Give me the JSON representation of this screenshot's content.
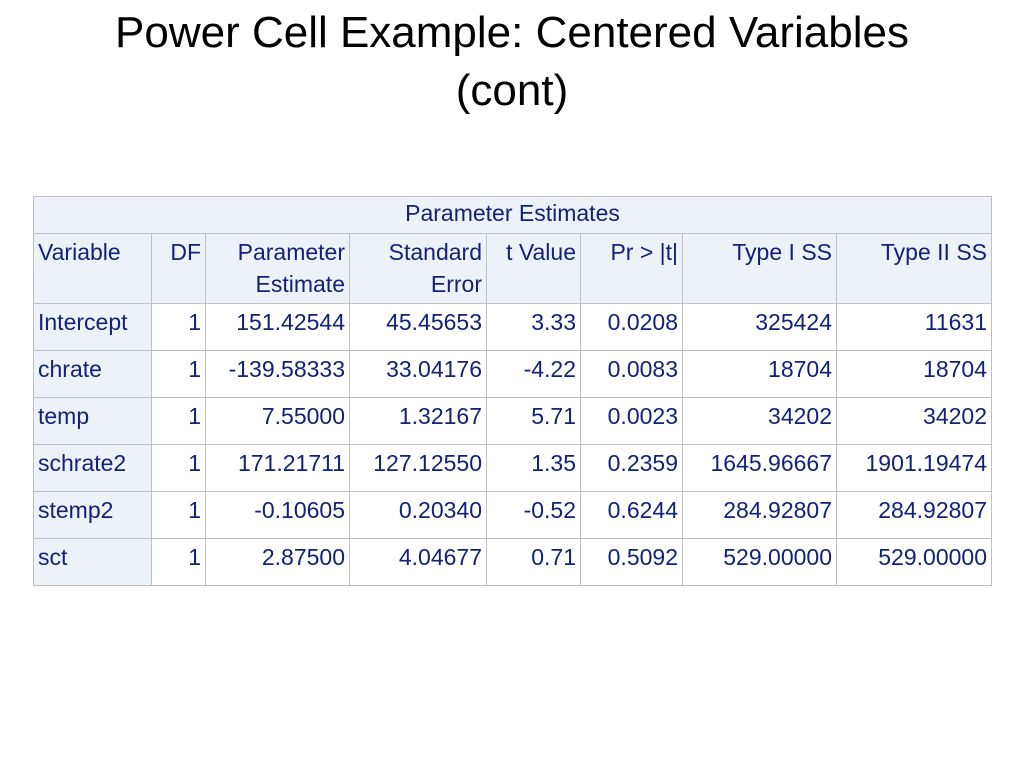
{
  "slide": {
    "title_line1": "Power Cell Example: Centered Variables",
    "title_line2": "(cont)"
  },
  "table": {
    "caption": "Parameter Estimates",
    "headers": [
      {
        "line1": "Variable",
        "line2": ""
      },
      {
        "line1": "DF",
        "line2": ""
      },
      {
        "line1": "Parameter",
        "line2": "Estimate"
      },
      {
        "line1": "Standard",
        "line2": "Error"
      },
      {
        "line1": "t Value",
        "line2": ""
      },
      {
        "line1": "Pr > |t|",
        "line2": ""
      },
      {
        "line1": "Type I SS",
        "line2": ""
      },
      {
        "line1": "Type II SS",
        "line2": ""
      }
    ],
    "rows": [
      [
        "Intercept",
        "1",
        "151.42544",
        "45.45653",
        "3.33",
        "0.0208",
        "325424",
        "11631"
      ],
      [
        "chrate",
        "1",
        "-139.58333",
        "33.04176",
        "-4.22",
        "0.0083",
        "18704",
        "18704"
      ],
      [
        "temp",
        "1",
        "7.55000",
        "1.32167",
        "5.71",
        "0.0023",
        "34202",
        "34202"
      ],
      [
        "schrate2",
        "1",
        "171.21711",
        "127.12550",
        "1.35",
        "0.2359",
        "1645.96667",
        "1901.19474"
      ],
      [
        "stemp2",
        "1",
        "-0.10605",
        "0.20340",
        "-0.52",
        "0.6244",
        "284.92807",
        "284.92807"
      ],
      [
        "sct",
        "1",
        "2.87500",
        "4.04677",
        "0.71",
        "0.5092",
        "529.00000",
        "529.00000"
      ]
    ]
  }
}
